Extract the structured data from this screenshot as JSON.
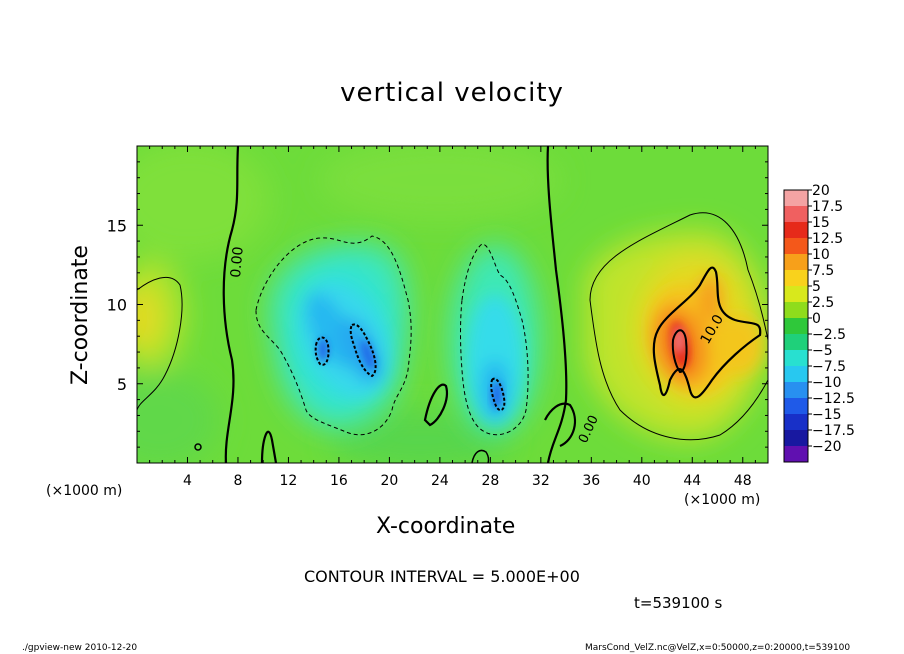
{
  "chart_data": {
    "type": "heatmap",
    "title": "vertical velocity",
    "xlabel": "X-coordinate",
    "ylabel": "Z-coordinate",
    "x_unit_left": "(×1000 m)",
    "x_unit_right": "(×1000 m)",
    "xlim": [
      0,
      50
    ],
    "ylim": [
      0,
      20
    ],
    "x_ticks": [
      4,
      8,
      12,
      16,
      20,
      24,
      28,
      32,
      36,
      40,
      44,
      48
    ],
    "x_tick_labels": [
      "4",
      "8",
      "12",
      "16",
      "20",
      "24",
      "28",
      "32",
      "36",
      "40",
      "44",
      "48"
    ],
    "y_ticks": [
      5,
      10,
      15
    ],
    "y_tick_labels": [
      "5",
      "10",
      "15"
    ],
    "colorbar": {
      "levels": [
        20,
        17.5,
        15,
        12.5,
        10,
        7.5,
        5,
        2.5,
        0,
        -2.5,
        -5,
        -7.5,
        -10,
        -12.5,
        -15,
        -17.5,
        -20
      ],
      "labels": [
        "20",
        "17.5",
        "15",
        "12.5",
        "10",
        "7.5",
        "5",
        "2.5",
        "0",
        "−2.5",
        "−5",
        "−7.5",
        "−10",
        "−12.5",
        "−15",
        "−17.5",
        "−20"
      ],
      "colors": [
        "#f4a3a3",
        "#f06060",
        "#e62a1a",
        "#f4581a",
        "#f7a01a",
        "#f9d21c",
        "#d8e81c",
        "#8fdc1c",
        "#2fc83a",
        "#1fd07a",
        "#28e0d0",
        "#28c8f0",
        "#2890f0",
        "#1f5ae8",
        "#1830c8",
        "#1818a0",
        "#6010b0"
      ]
    },
    "contour_labels": [
      "0.00",
      "10.0",
      "0.00"
    ],
    "features": [
      {
        "name": "downdraft",
        "x": 16.5,
        "z": 7,
        "w_min": -10
      },
      {
        "name": "downdraft",
        "x": 28.5,
        "z": 4.5,
        "w_min": -10
      },
      {
        "name": "updraft",
        "x": 43,
        "z": 7.5,
        "w_max": 15
      },
      {
        "name": "updraft",
        "x": 0.5,
        "z": 9.5,
        "w_max": 7.5
      }
    ]
  },
  "contour_interval": "CONTOUR INTERVAL = 5.000E+00",
  "time": "t=539100 s",
  "footer_left": "./gpview-new   2010-12-20",
  "footer_right": "MarsCond_VelZ.nc@VelZ,x=0:50000,z=0:20000,t=539100"
}
